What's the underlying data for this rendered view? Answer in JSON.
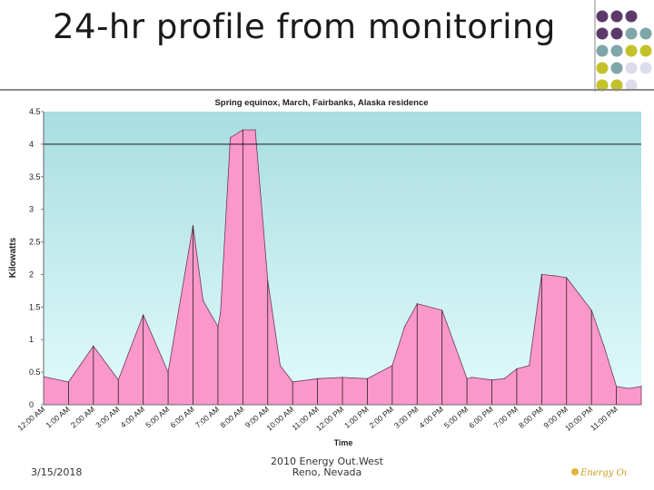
{
  "slide": {
    "title": "24-hr profile from monitoring",
    "date": "3/15/2018",
    "footer_line1": "2010 Energy Out.West",
    "footer_line2": "Reno, Nevada",
    "logo_text": "Energy OutWest"
  },
  "colors": {
    "area_fill": "#fb98cb",
    "plot_bg_top": "#a8dde1",
    "plot_bg_bottom": "#e2fbfb",
    "dot_purple": "#5b3a6b",
    "dot_teal": "#7fa6a8",
    "dot_olive": "#c4c22a",
    "dot_lavender": "#dcdcec"
  },
  "chart_data": {
    "type": "area",
    "title": "Spring equinox, March, Fairbanks, Alaska residence",
    "xlabel": "Time",
    "ylabel": "Kilowatts",
    "ylim": [
      0,
      4.5
    ],
    "yticks": [
      "0",
      "0.5",
      "1",
      "1.5",
      "2",
      "2.5",
      "3",
      "3.5",
      "4",
      "4.5"
    ],
    "categories": [
      "12:00 AM",
      "1:00 AM",
      "2:00 AM",
      "3:00 AM",
      "4:00 AM",
      "5:00 AM",
      "6:00 AM",
      "7:00 AM",
      "8:00 AM",
      "9:00 AM",
      "10:00 AM",
      "11:00 AM",
      "12:00 PM",
      "1:00 PM",
      "2:00 PM",
      "3:00 PM",
      "4:00 PM",
      "5:00 PM",
      "6:00 PM",
      "7:00 PM",
      "8:00 PM",
      "9:00 PM",
      "10:00 PM",
      "11:00 PM"
    ],
    "x": [
      0,
      1,
      2,
      3,
      4,
      5,
      6,
      6.4,
      7,
      7.1,
      7.5,
      8,
      8.5,
      9,
      9.5,
      10,
      11,
      12,
      13,
      14,
      14.5,
      15,
      16,
      17,
      17.2,
      18,
      18.5,
      19,
      19.5,
      20,
      20.5,
      21,
      21.5,
      22,
      22.5,
      23,
      23.5,
      24
    ],
    "values": [
      0.43,
      0.35,
      0.9,
      0.38,
      1.38,
      0.5,
      2.75,
      1.6,
      1.2,
      1.4,
      4.1,
      4.22,
      4.22,
      1.9,
      0.6,
      0.35,
      0.4,
      0.42,
      0.4,
      0.6,
      1.2,
      1.55,
      1.45,
      0.4,
      0.42,
      0.38,
      0.4,
      0.55,
      0.6,
      2.0,
      1.98,
      1.95,
      1.7,
      1.45,
      0.9,
      0.28,
      0.25,
      0.28
    ],
    "gridlines": [
      4
    ],
    "legend": "none"
  }
}
